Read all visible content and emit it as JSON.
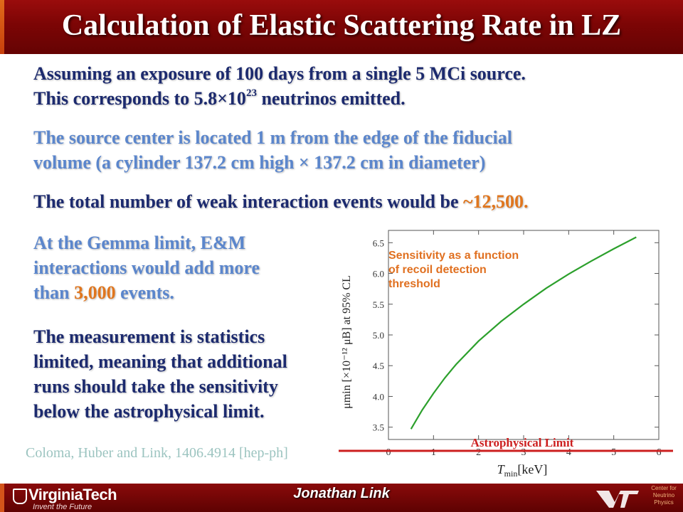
{
  "title": "Calculation of Elastic Scattering Rate in LZ",
  "paragraphs": {
    "p1_line1": "Assuming an exposure of 100 days from a single 5 MCi source.",
    "p1_line2_pre": "This corresponds to 5.8×10",
    "p1_line2_sup": "23",
    "p1_line2_post": " neutrinos emitted.",
    "p2_line1": "The source center is located 1 m from the edge of the fiducial",
    "p2_line2": "volume (a cylinder 137.2 cm high × 137.2 cm in diameter)",
    "p3_pre": "The total number of weak interaction events would be ",
    "p3_highlight": "~12,500.",
    "p4_line1": "At the Gemma limit, E&M",
    "p4_line2": "interactions would add more",
    "p4_line3_pre": "than ",
    "p4_line3_highlight": "3,000",
    "p4_line3_post": " events.",
    "p5_line1": "The measurement is statistics",
    "p5_line2": "limited, meaning that additional",
    "p5_line3": "runs should take the sensitivity",
    "p5_line4": "below the astrophysical  limit."
  },
  "citation": "Coloma, Huber and Link, 1406.4914 [hep-ph]",
  "chart_data": {
    "type": "line",
    "annotation": "Sensitivity as a function of recoil detection threshold",
    "annotation_lines": [
      "Sensitivity as a function",
      "of recoil detection",
      "threshold"
    ],
    "xlabel_main": "T",
    "xlabel_sub": "min",
    "xlabel_unit": "[keV]",
    "ylabel": "μmin [×10⁻¹² μB] at 95% CL",
    "xlim": [
      0,
      6
    ],
    "ylim": [
      3.3,
      6.7
    ],
    "xticks": [
      "0",
      "1",
      "2",
      "3",
      "4",
      "5",
      "6"
    ],
    "yticks": [
      "3.5",
      "4.0",
      "4.5",
      "5.0",
      "5.5",
      "6.0",
      "6.5"
    ],
    "series": [
      {
        "color": "#2ca02c",
        "x": [
          0.5,
          0.75,
          1.0,
          1.25,
          1.5,
          2.0,
          2.5,
          3.0,
          3.5,
          4.0,
          4.5,
          5.0,
          5.5
        ],
        "y": [
          3.47,
          3.78,
          4.05,
          4.3,
          4.52,
          4.9,
          5.22,
          5.5,
          5.76,
          5.99,
          6.2,
          6.4,
          6.59
        ]
      }
    ],
    "reference_line": {
      "label": "Astrophysical Limit",
      "y": 3.3,
      "color": "#cc1f1f"
    },
    "grid": false
  },
  "footer": {
    "university": "VirginiaTech",
    "tagline": "Invent the Future",
    "presenter": "Jonathan Link",
    "center_lines": [
      "Center for",
      "Neutrino",
      "Physics"
    ]
  },
  "colors": {
    "title_bar": "#7c0505",
    "text_dark": "#1c2a6e",
    "text_light": "#5b86cc",
    "highlight": "#e0761e",
    "curve": "#2ca02c",
    "limit_line": "#cc1f1f"
  }
}
